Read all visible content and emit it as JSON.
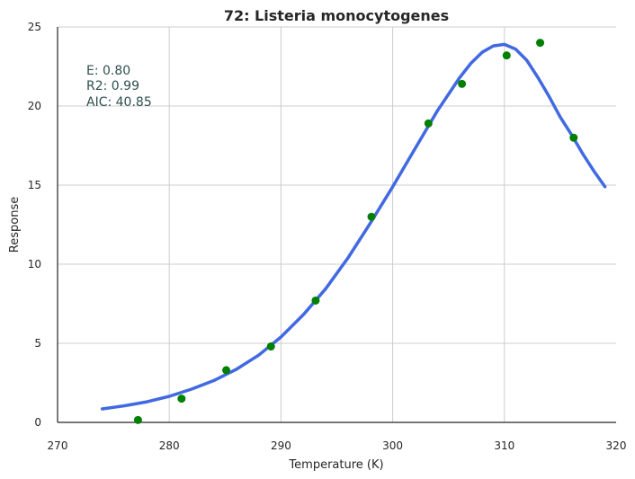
{
  "chart_data": {
    "type": "scatter",
    "title": "72: Listeria monocytogenes",
    "xlabel": "Temperature (K)",
    "ylabel": "Response",
    "xlim": [
      270,
      320
    ],
    "ylim": [
      0,
      25
    ],
    "xticks": [
      270,
      280,
      290,
      300,
      310,
      320
    ],
    "yticks": [
      0,
      5,
      10,
      15,
      20,
      25
    ],
    "grid": true,
    "annotations": [
      "E:  0.80",
      "R2:  0.99",
      "AIC: 40.85"
    ],
    "series": [
      {
        "type": "scatter",
        "color": "#008000",
        "x": [
          277.2,
          281.1,
          285.1,
          289.1,
          293.1,
          298.1,
          303.2,
          306.2,
          310.2,
          313.2,
          316.2
        ],
        "y": [
          0.15,
          1.5,
          3.3,
          4.8,
          7.7,
          13.0,
          18.9,
          21.4,
          23.2,
          24.0,
          18.0
        ]
      },
      {
        "type": "line",
        "color": "#4169e1",
        "x": [
          274,
          276,
          278,
          280,
          282,
          284,
          286,
          288,
          290,
          292,
          294,
          296,
          298,
          300,
          302,
          304,
          306,
          307,
          308,
          309,
          310,
          311,
          312,
          313,
          314,
          315,
          316,
          317,
          318,
          319
        ],
        "y": [
          0.85,
          1.05,
          1.3,
          1.65,
          2.1,
          2.65,
          3.35,
          4.25,
          5.4,
          6.8,
          8.45,
          10.4,
          12.6,
          14.9,
          17.3,
          19.7,
          21.8,
          22.7,
          23.4,
          23.8,
          23.9,
          23.6,
          22.9,
          21.8,
          20.6,
          19.3,
          18.2,
          17.0,
          15.9,
          14.9
        ]
      }
    ]
  }
}
